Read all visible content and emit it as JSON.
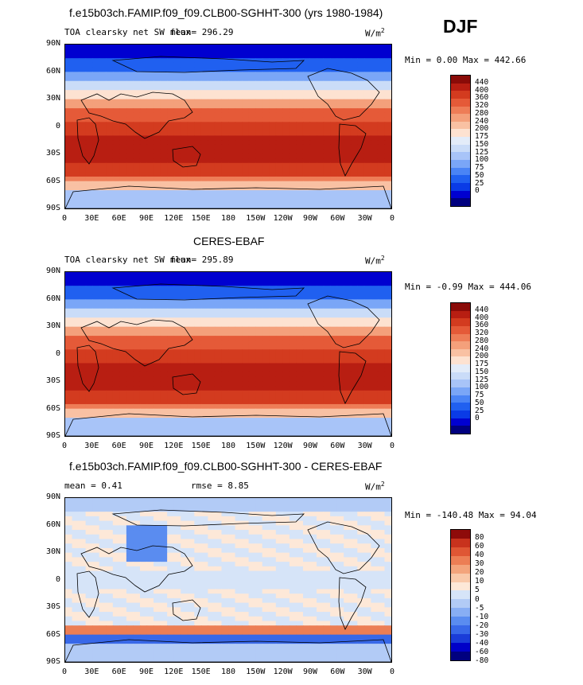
{
  "season": "DJF",
  "colors": {
    "positive_scale": [
      "#00007f",
      "#0000d0",
      "#0a3be6",
      "#2060f0",
      "#4a84f5",
      "#7aa6f7",
      "#a8c4f8",
      "#cadcf8",
      "#e3ecf9",
      "#fde2d1",
      "#f9c1a3",
      "#f4a07b",
      "#ee7d57",
      "#e55a38",
      "#d33b1f",
      "#b81e12",
      "#8a0b08"
    ],
    "diff_scale": [
      "#00007f",
      "#0000c8",
      "#1a3cd8",
      "#3868e8",
      "#5a8cf0",
      "#88aef4",
      "#b2cbf6",
      "#d6e4f8",
      "#fde8d8",
      "#f9c9aa",
      "#f3a47c",
      "#ec7e55",
      "#df5634",
      "#c8321d",
      "#8e0b0a"
    ]
  },
  "panels": [
    {
      "id": "model",
      "heading": "f.e15b03ch.FAMIP.f09_f09.CLB00-SGHHT-300 (yrs 1980-1984)",
      "variable": "TOA clearsky net SW flux",
      "mean_text": "mean= 296.29",
      "rmse_text": "",
      "units": "W/m",
      "units_sup": "2",
      "minmax": "Min =   0.00 Max = 442.66",
      "scale": "positive"
    },
    {
      "id": "obs",
      "heading": "CERES-EBAF",
      "variable": "TOA clearsky net SW flux",
      "mean_text": "mean= 295.89",
      "rmse_text": "",
      "units": "W/m",
      "units_sup": "2",
      "minmax": "Min =  -0.99 Max = 444.06",
      "scale": "positive"
    },
    {
      "id": "diff",
      "heading": "f.e15b03ch.FAMIP.f09_f09.CLB00-SGHHT-300 - CERES-EBAF",
      "variable": "",
      "mean_text": "mean =    0.41",
      "rmse_text": "rmse =    8.85",
      "units": "W/m",
      "units_sup": "2",
      "minmax": "Min = -140.48 Max =  94.04",
      "scale": "diff"
    }
  ],
  "lat_ticks": [
    "90N",
    "60N",
    "30N",
    "0",
    "30S",
    "60S",
    "90S"
  ],
  "lon_ticks": [
    "0",
    "30E",
    "60E",
    "90E",
    "120E",
    "150E",
    "180",
    "150W",
    "120W",
    "90W",
    "60W",
    "30W",
    "0"
  ],
  "positive_levels": [
    "440",
    "400",
    "360",
    "320",
    "280",
    "240",
    "200",
    "175",
    "150",
    "125",
    "100",
    "75",
    "50",
    "25",
    "0"
  ],
  "diff_levels": [
    "80",
    "60",
    "40",
    "30",
    "20",
    "10",
    "5",
    "0",
    "-5",
    "-10",
    "-20",
    "-30",
    "-40",
    "-60",
    "-80"
  ]
}
